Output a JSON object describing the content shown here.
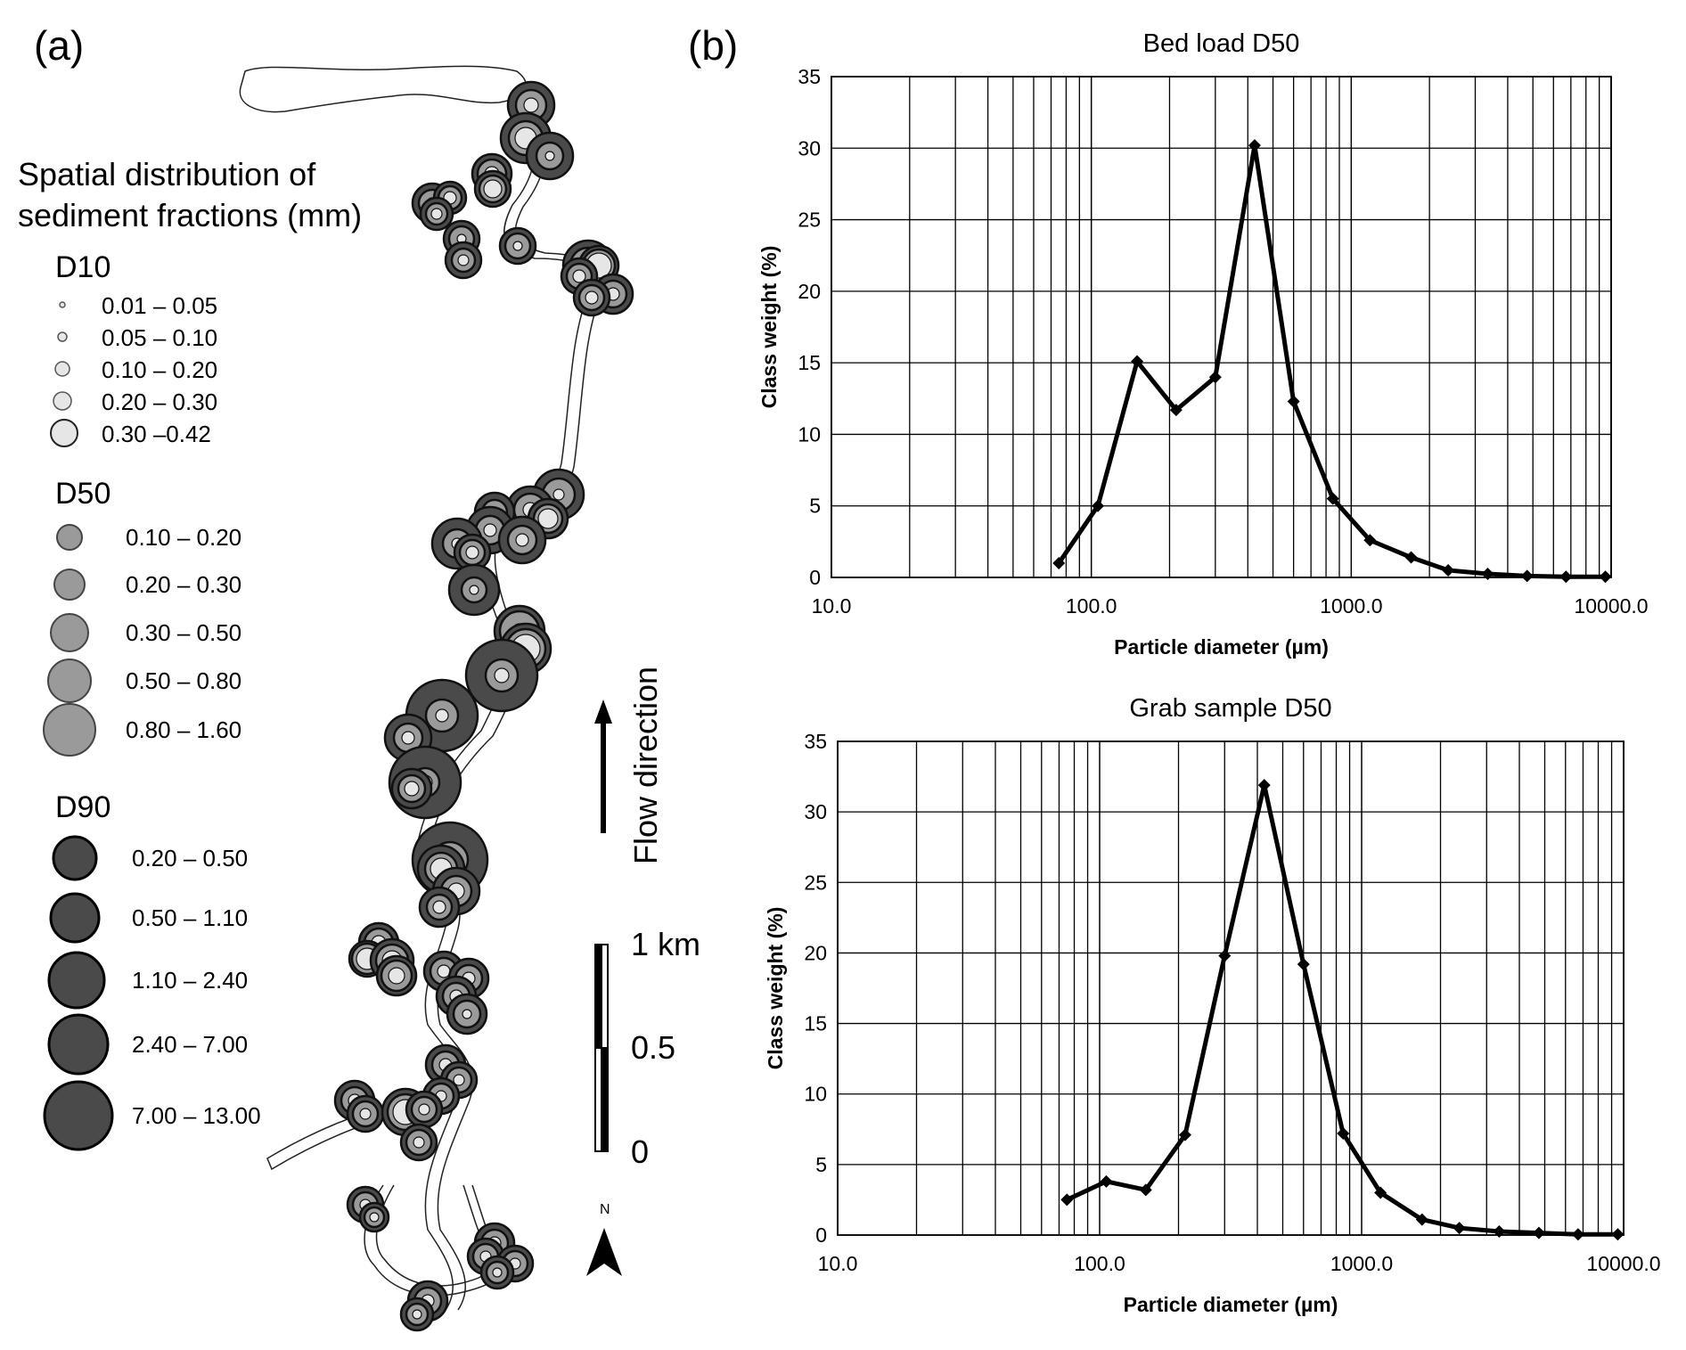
{
  "panel_a_label": "(a)",
  "panel_b_label": "(b)",
  "map": {
    "legend_title_line1": "Spatial distribution of",
    "legend_title_line2": "sediment fractions (mm)",
    "d10": {
      "title": "D10",
      "classes": [
        "0.01 – 0.05",
        "0.05 – 0.10",
        "0.10 – 0.20",
        "0.20 – 0.30",
        "0.30 –0.42"
      ],
      "color": "#e6e6e6"
    },
    "d50": {
      "title": "D50",
      "classes": [
        "0.10 – 0.20",
        "0.20 – 0.30",
        "0.30 – 0.50",
        "0.50 – 0.80",
        "0.80 – 1.60"
      ],
      "color": "#9a9a9a"
    },
    "d90": {
      "title": "D90",
      "classes": [
        "0.20 – 0.50",
        "0.50 – 1.10",
        "1.10  – 2.40",
        "2.40  – 7.00",
        "7.00  –  13.00"
      ],
      "color": "#4a4a4a"
    },
    "flow_direction": "Flow direction",
    "scale_bar": {
      "top": "1 km",
      "mid": "0.5",
      "bottom": "0"
    },
    "north_label": "N"
  },
  "chart_data": [
    {
      "type": "line",
      "title": "Bed load D50",
      "xlabel": "Particle diameter (µm)",
      "ylabel": "Class weight (%)",
      "xscale": "log",
      "xlim": [
        10,
        10000
      ],
      "ylim": [
        0,
        35
      ],
      "xticks": [
        "10.0",
        "100.0",
        "1000.0",
        "10000.0"
      ],
      "yticks": [
        "0",
        "5",
        "10",
        "15",
        "20",
        "25",
        "30",
        "35"
      ],
      "grid": true,
      "x": [
        75,
        106,
        150,
        212,
        300,
        425,
        600,
        850,
        1180,
        1700,
        2360,
        3350,
        4750,
        6700,
        9500
      ],
      "y": [
        1.0,
        5.0,
        15.1,
        11.7,
        14.0,
        30.2,
        12.3,
        5.5,
        2.6,
        1.4,
        0.5,
        0.25,
        0.1,
        0.05,
        0.05
      ]
    },
    {
      "type": "line",
      "title": "Grab sample D50",
      "xlabel": "Particle diameter (µm)",
      "ylabel": "Class weight (%)",
      "xscale": "log",
      "xlim": [
        10,
        10000
      ],
      "ylim": [
        0,
        35
      ],
      "xticks": [
        "10.0",
        "100.0",
        "1000.0",
        "10000.0"
      ],
      "yticks": [
        "0",
        "5",
        "10",
        "15",
        "20",
        "25",
        "30",
        "35"
      ],
      "grid": true,
      "x": [
        75,
        106,
        150,
        212,
        300,
        425,
        600,
        850,
        1180,
        1700,
        2360,
        3350,
        4750,
        6700,
        9500
      ],
      "y": [
        2.5,
        3.8,
        3.2,
        7.1,
        19.8,
        31.9,
        19.2,
        7.2,
        3.0,
        1.1,
        0.5,
        0.25,
        0.15,
        0.05,
        0.05
      ]
    }
  ]
}
